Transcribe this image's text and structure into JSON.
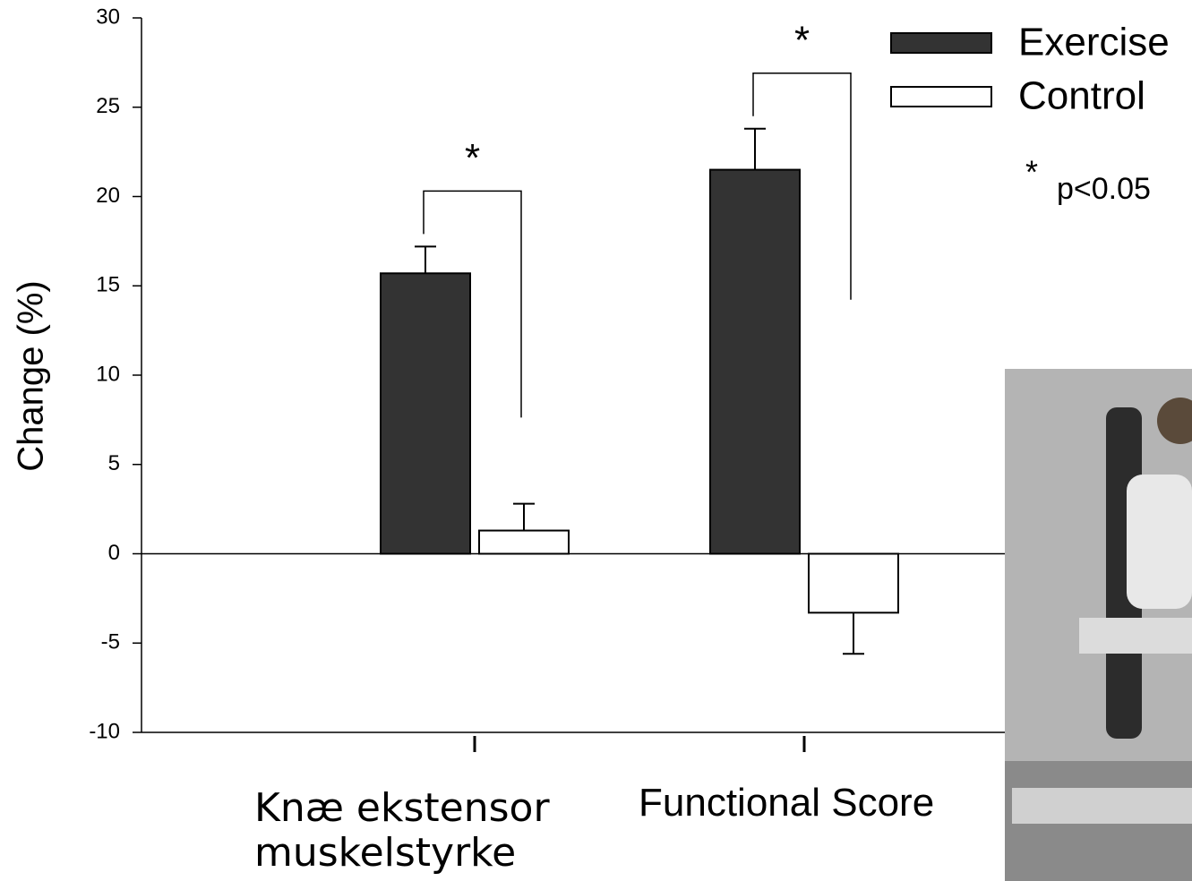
{
  "chart_data": {
    "type": "bar",
    "ylabel": "Change (%)",
    "categories": [
      "Knæ ekstensor\nmuskelstyrke",
      "Functional Score"
    ],
    "series": [
      {
        "name": "Exercise",
        "color": "#333333",
        "values": [
          15.7,
          21.5
        ],
        "errors": [
          1.5,
          2.3
        ]
      },
      {
        "name": "Control",
        "color": "#ffffff",
        "values": [
          1.3,
          -3.3
        ],
        "errors": [
          1.5,
          2.3
        ]
      }
    ],
    "ylim": [
      -10,
      30
    ],
    "yticks": [
      -10,
      -5,
      0,
      5,
      10,
      15,
      20,
      25,
      30
    ],
    "annotations": [
      "*",
      "*"
    ],
    "note": {
      "symbol": "*",
      "text": "p<0.05"
    }
  }
}
